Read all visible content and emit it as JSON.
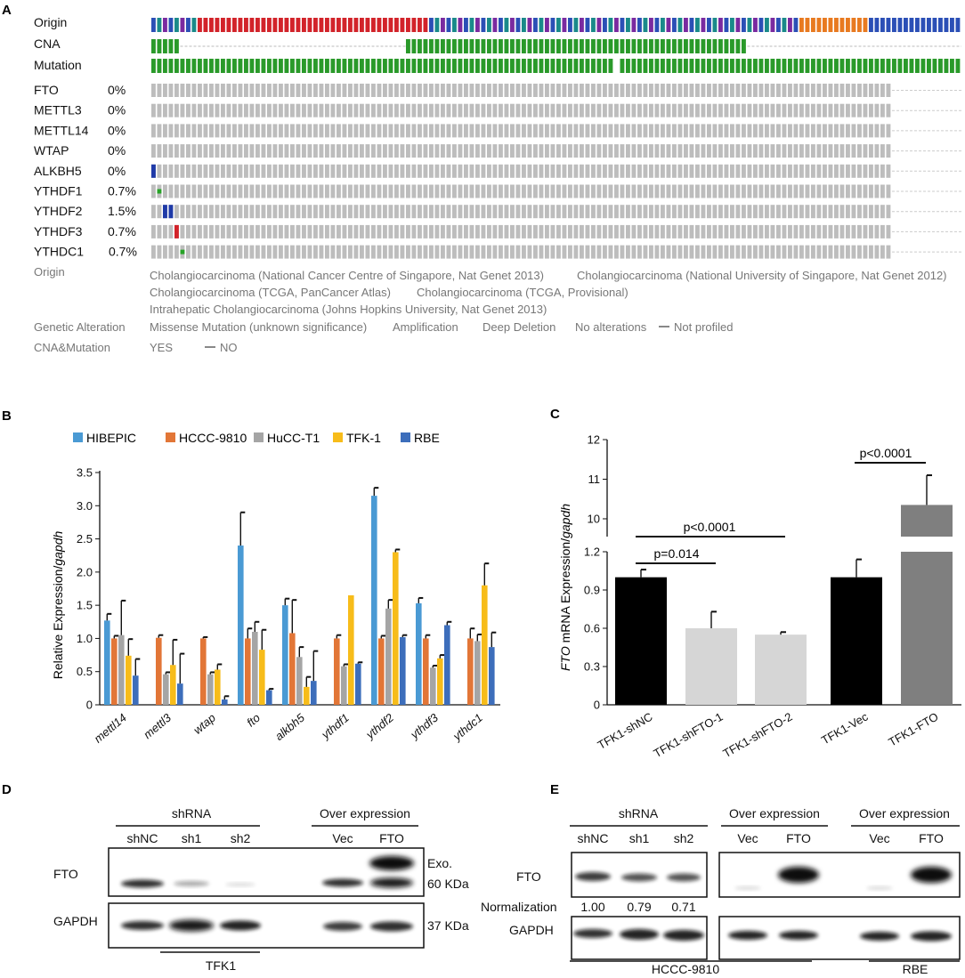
{
  "panel_letters": [
    "A",
    "B",
    "C",
    "D",
    "E"
  ],
  "oncoprint": {
    "track_labels": [
      "Origin",
      "CNA",
      "Mutation"
    ],
    "genes": [
      {
        "name": "FTO",
        "pct": "0%"
      },
      {
        "name": "METTL3",
        "pct": "0%"
      },
      {
        "name": "METTL14",
        "pct": "0%"
      },
      {
        "name": "WTAP",
        "pct": "0%"
      },
      {
        "name": "ALKBH5",
        "pct": "0%"
      },
      {
        "name": "YTHDF1",
        "pct": "0.7%"
      },
      {
        "name": "YTHDF2",
        "pct": "1.5%"
      },
      {
        "name": "YTHDF3",
        "pct": "0.7%"
      },
      {
        "name": "YTHDC1",
        "pct": "0.7%"
      }
    ],
    "legend": {
      "origin_label": "Origin",
      "origin_items": [
        "Cholangiocarcinoma (National Cancer Centre of Singapore, Nat Genet 2013)",
        "Cholangiocarcinoma (National University of Singapore, Nat Genet 2012)",
        "Cholangiocarcinoma (TCGA, PanCancer Atlas)",
        "Cholangiocarcinoma (TCGA, Provisional)",
        "Intrahepatic Cholangiocarcinoma (Johns Hopkins University, Nat Genet 2013)"
      ],
      "alteration_label": "Genetic Alteration",
      "alteration_items": [
        "Missense Mutation (unknown significance)",
        "Amplification",
        "Deep Deletion",
        "No alterations",
        "Not profiled"
      ],
      "cna_label": "CNA&Mutation",
      "cna_items": [
        "YES",
        "NO"
      ]
    },
    "colors": {
      "origin": [
        "#2b4fb6",
        "#1a8a8a",
        "#7a2aa0",
        "#d2232a",
        "#e87a20"
      ],
      "profiled": "#2a9a2a",
      "unaltered": "#bdbdbd",
      "missense": "#27a327",
      "amplification": "#d2232a",
      "deep_deletion": "#1f3aa8"
    }
  },
  "chart_data": [
    {
      "type": "bar",
      "panel": "B",
      "ylabel": "Relative Expression/gapdh",
      "ylim": [
        0,
        3.5
      ],
      "yticks": [
        "0",
        "0.5",
        "1.0",
        "1.5",
        "2.0",
        "2.5",
        "3.0",
        "3.5"
      ],
      "categories": [
        "mettl14",
        "mettl3",
        "wtap",
        "fto",
        "alkbh5",
        "ythdf1",
        "ythdf2",
        "ythdf3",
        "ythdc1"
      ],
      "series": [
        {
          "name": "HIBEPIC",
          "color": "#4a9ad4",
          "values": [
            1.27,
            0,
            0,
            2.4,
            1.5,
            0,
            3.15,
            1.53,
            0
          ],
          "errors": [
            0.1,
            0,
            0,
            0.5,
            0.1,
            0,
            0.12,
            0.08,
            0
          ]
        },
        {
          "name": "HCCC-9810",
          "color": "#e27637",
          "values": [
            1.0,
            1.01,
            1.0,
            1.0,
            1.08,
            1.0,
            1.0,
            1.0,
            1.0
          ],
          "errors": [
            0.04,
            0.04,
            0.02,
            0.15,
            0.5,
            0.05,
            0.04,
            0.05,
            0.15
          ]
        },
        {
          "name": "HuCC-T1",
          "color": "#a5a5a5",
          "values": [
            1.05,
            0.46,
            0.46,
            1.1,
            0.72,
            0.58,
            1.45,
            0.56,
            0.96
          ],
          "errors": [
            0.52,
            0.03,
            0.03,
            0.15,
            0.15,
            0.03,
            0.13,
            0.03,
            0.1
          ]
        },
        {
          "name": "TFK-1",
          "color": "#f7bc1a",
          "values": [
            0.74,
            0.6,
            0.53,
            0.83,
            0.27,
            1.65,
            2.3,
            0.7,
            1.8
          ],
          "errors": [
            0.25,
            0.38,
            0.08,
            0.3,
            0.15,
            0.0,
            0.04,
            0.05,
            0.33
          ]
        },
        {
          "name": "RBE",
          "color": "#3d6ebb",
          "values": [
            0.44,
            0.32,
            0.08,
            0.22,
            0.36,
            0.62,
            1.02,
            1.2,
            0.87
          ],
          "errors": [
            0.25,
            0.45,
            0.05,
            0.02,
            0.45,
            0.02,
            0.03,
            0.05,
            0.22
          ]
        }
      ]
    },
    {
      "type": "bar",
      "panel": "C",
      "ylabel_italic": "FTO",
      "ylabel_rest": " mRNA Expression/",
      "ylabel_italic2": "gapdh",
      "yticks_low": [
        "0",
        "0.3",
        "0.6",
        "0.9",
        "1.2"
      ],
      "yticks_high": [
        "10",
        "11",
        "12"
      ],
      "ylim_low": [
        0,
        1.2
      ],
      "ylim_high": [
        9.55,
        12
      ],
      "categories": [
        "TFK1-shNC",
        "TFK1-shFTO-1",
        "TFK1-shFTO-2",
        "TFK1-Vec",
        "TFK1-FTO"
      ],
      "values": [
        1.0,
        0.6,
        0.55,
        1.0,
        10.35
      ],
      "errors": [
        0.06,
        0.13,
        0.02,
        0.14,
        0.75
      ],
      "colors": [
        "#000000",
        "#d6d6d6",
        "#d6d6d6",
        "#000000",
        "#7f7f7f"
      ],
      "annotations": [
        "p=0.014",
        "p<0.0001",
        "p<0.0001"
      ]
    }
  ],
  "blot_d": {
    "group_shrna": "shRNA",
    "group_over": "Over expression",
    "lanes": [
      "shNC",
      "sh1",
      "sh2",
      "Vec",
      "FTO"
    ],
    "row_labels": [
      "FTO",
      "GAPDH"
    ],
    "right_labels": [
      "Exo.",
      "60 KDa",
      "37 KDa"
    ],
    "cell_line": "TFK1"
  },
  "blot_e": {
    "group_shrna": "shRNA",
    "group_over1": "Over expression",
    "group_over2": "Over expression",
    "lanes_sh": [
      "shNC",
      "sh1",
      "sh2"
    ],
    "lanes_over1": [
      "Vec",
      "FTO"
    ],
    "lanes_over2": [
      "Vec",
      "FTO"
    ],
    "row_labels": [
      "FTO",
      "GAPDH"
    ],
    "normalization_label": "Normalization",
    "normalization_values": [
      "1.00",
      "0.79",
      "0.71"
    ],
    "cell_lines": [
      "HCCC-9810",
      "RBE"
    ]
  }
}
